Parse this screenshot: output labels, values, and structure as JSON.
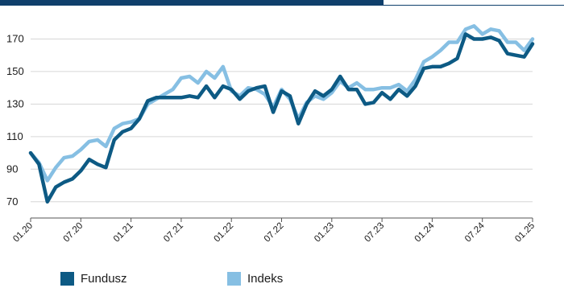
{
  "colors": {
    "fund": "#0d5a84",
    "index": "#86bfe3",
    "header": "#0f3f6b",
    "grid": "#d6d6d6",
    "axis": "#555555"
  },
  "legend": {
    "fund_label": "Fundusz",
    "index_label": "Indeks"
  },
  "chart_data": {
    "type": "line",
    "title": "",
    "xlabel": "",
    "ylabel": "",
    "ylim": [
      60,
      190
    ],
    "yticks": [
      70,
      90,
      110,
      130,
      150,
      170
    ],
    "x_tick_labels": [
      "01.20",
      "07.20",
      "01.21",
      "07.21",
      "01.22",
      "07.22",
      "01.23",
      "07.23",
      "01.24",
      "07.24",
      "01.25"
    ],
    "grid": true,
    "legend_position": "bottom",
    "series": [
      {
        "name": "Fundusz",
        "color": "#0d5a84",
        "values": [
          100,
          93,
          70,
          79,
          82,
          84,
          89,
          96,
          93,
          91,
          108,
          113,
          115,
          121,
          132,
          134,
          134,
          134,
          134,
          135,
          134,
          141,
          134,
          141,
          139,
          133,
          138,
          140,
          141,
          125,
          138,
          135,
          118,
          130,
          138,
          135,
          139,
          147,
          139,
          139,
          130,
          131,
          137,
          133,
          139,
          135,
          141,
          152,
          153,
          153,
          155,
          158,
          173,
          170,
          170,
          171,
          169,
          161,
          160,
          159,
          167
        ]
      },
      {
        "name": "Indeks",
        "color": "#86bfe3",
        "values": [
          100,
          94,
          83,
          91,
          97,
          98,
          102,
          107,
          108,
          104,
          115,
          118,
          119,
          121,
          130,
          133,
          136,
          139,
          146,
          147,
          143,
          150,
          146,
          153,
          138,
          135,
          140,
          139,
          136,
          128,
          139,
          133,
          121,
          131,
          135,
          133,
          137,
          144,
          140,
          143,
          139,
          139,
          140,
          140,
          142,
          138,
          145,
          156,
          159,
          163,
          168,
          168,
          176,
          178,
          173,
          176,
          175,
          168,
          168,
          163,
          170
        ]
      }
    ]
  }
}
